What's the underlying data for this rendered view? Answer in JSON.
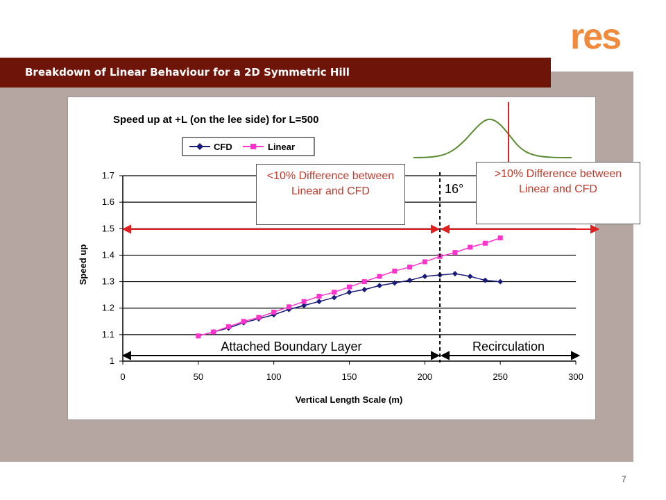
{
  "slide": {
    "title": "Breakdown of Linear Behaviour for a 2D Symmetric Hill",
    "page_number": "7",
    "logo_text": "res"
  },
  "annotations": {
    "left_callout": "<10% Difference between Linear and CFD",
    "right_callout": ">10% Difference between Linear and CFD",
    "angle": "16°",
    "attached": "Attached Boundary Layer",
    "recirc": "Recirculation"
  },
  "colors": {
    "title_bg": "#6e1408",
    "panel_bg": "#b6a6a2",
    "cfd": "#1a1a7a",
    "linear": "#ff33cc",
    "red": "#e02020",
    "hill": "#5a8a30"
  },
  "chart_data": {
    "type": "line",
    "title": "Speed up at +L (on the lee side) for L=500",
    "xlabel": "Vertical Length Scale (m)",
    "ylabel": "Speed up",
    "xlim": [
      0,
      300
    ],
    "ylim": [
      1,
      1.7
    ],
    "xticks": [
      0,
      50,
      100,
      150,
      200,
      250,
      300
    ],
    "yticks": [
      1,
      1.1,
      1.2,
      1.3,
      1.4,
      1.5,
      1.6,
      1.7
    ],
    "yticklabels": [
      "1",
      "1.1",
      "1.2",
      "1.3",
      "1.4",
      "1.5",
      "1.6",
      "1.7"
    ],
    "grid": "horizontal",
    "legend": "top-left",
    "threshold_x": 210,
    "series": [
      {
        "name": "CFD",
        "marker": "diamond",
        "x": [
          50,
          60,
          70,
          80,
          90,
          100,
          110,
          120,
          130,
          140,
          150,
          160,
          170,
          180,
          190,
          200,
          210,
          220,
          230,
          240,
          250
        ],
        "y": [
          1.095,
          1.11,
          1.125,
          1.145,
          1.16,
          1.175,
          1.195,
          1.21,
          1.225,
          1.24,
          1.26,
          1.27,
          1.285,
          1.295,
          1.305,
          1.32,
          1.325,
          1.33,
          1.32,
          1.305,
          1.3
        ]
      },
      {
        "name": "Linear",
        "marker": "square",
        "x": [
          50,
          60,
          70,
          80,
          90,
          100,
          110,
          120,
          130,
          140,
          150,
          160,
          170,
          180,
          190,
          200,
          210,
          220,
          230,
          240,
          250
        ],
        "y": [
          1.095,
          1.11,
          1.13,
          1.15,
          1.165,
          1.185,
          1.205,
          1.225,
          1.245,
          1.26,
          1.28,
          1.3,
          1.32,
          1.34,
          1.355,
          1.375,
          1.395,
          1.41,
          1.43,
          1.445,
          1.465
        ]
      }
    ]
  }
}
